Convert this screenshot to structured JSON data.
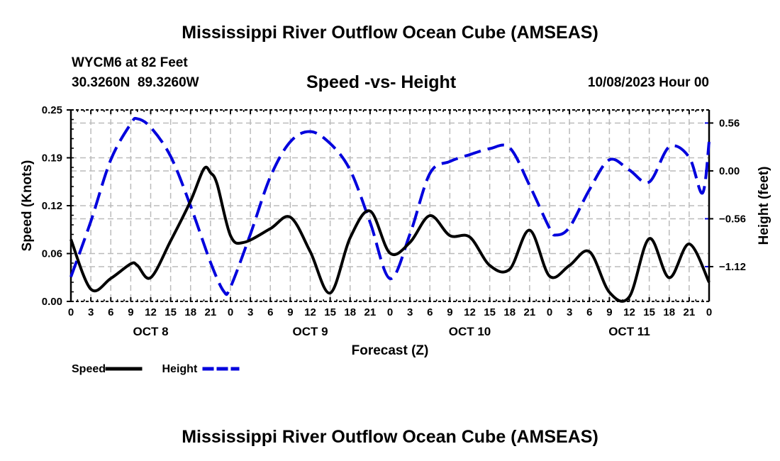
{
  "header": {
    "title": "Mississippi River Outflow Ocean Cube (AMSEAS)",
    "station": "WYCM6 at 82 Feet",
    "coords": "30.3260N  89.3260W",
    "date": "10/08/2023 Hour 00",
    "footer_title": "Mississippi River Outflow Ocean Cube (AMSEAS)"
  },
  "chart_data": {
    "type": "line",
    "title": "Speed -vs- Height",
    "xlabel": "Forecast (Z)",
    "ylabel": "Speed (Knots)",
    "y2label": "Height (feet)",
    "xlim": [
      0,
      96
    ],
    "ylim": [
      0,
      0.25
    ],
    "y2lim": [
      -1.527,
      0.713
    ],
    "grid": true,
    "legend_placement": "bottom-left",
    "x_tick_labels": [
      "0",
      "3",
      "6",
      "9",
      "12",
      "15",
      "18",
      "21",
      "0",
      "3",
      "6",
      "9",
      "12",
      "15",
      "18",
      "21",
      "0",
      "3",
      "6",
      "9",
      "12",
      "15",
      "18",
      "21",
      "0",
      "3",
      "6",
      "9",
      "12",
      "15",
      "18",
      "21",
      "0"
    ],
    "day_labels": [
      {
        "label": "OCT 8",
        "hour": 12
      },
      {
        "label": "OCT 9",
        "hour": 36
      },
      {
        "label": "OCT 10",
        "hour": 60
      },
      {
        "label": "OCT 11",
        "hour": 84
      }
    ],
    "y_ticks": [
      {
        "v": 0,
        "label": "0.00"
      },
      {
        "v": 0.0625,
        "label": "0.06"
      },
      {
        "v": 0.125,
        "label": "0.12"
      },
      {
        "v": 0.1875,
        "label": "0.19"
      },
      {
        "v": 0.25,
        "label": "0.25"
      }
    ],
    "y2_ticks": [
      {
        "v": 0.56,
        "label": "0.56"
      },
      {
        "v": 0,
        "label": "0.00"
      },
      {
        "v": -0.56,
        "label": "−0.56"
      },
      {
        "v": -1.12,
        "label": "−1.12"
      }
    ],
    "series": [
      {
        "name": "Speed",
        "axis": "left",
        "color": "#000000",
        "dash": false,
        "x": [
          0,
          3,
          6,
          9,
          10,
          12,
          15,
          18,
          20,
          21,
          22,
          24,
          26,
          30,
          33,
          36,
          39,
          42,
          45,
          48,
          51,
          54,
          57,
          60,
          63,
          66,
          69,
          72,
          75,
          78,
          81,
          84,
          87,
          90,
          93,
          96
        ],
        "y": [
          0.081,
          0.016,
          0.03,
          0.049,
          0.047,
          0.031,
          0.079,
          0.131,
          0.173,
          0.168,
          0.153,
          0.086,
          0.077,
          0.095,
          0.11,
          0.065,
          0.011,
          0.083,
          0.118,
          0.063,
          0.077,
          0.112,
          0.086,
          0.084,
          0.047,
          0.042,
          0.093,
          0.033,
          0.047,
          0.065,
          0.012,
          0.006,
          0.082,
          0.031,
          0.075,
          0.025
        ]
      },
      {
        "name": "Height",
        "axis": "right",
        "color": "#0000dd",
        "dash": true,
        "x": [
          0,
          3,
          6,
          9,
          10,
          12,
          15,
          18,
          21,
          23,
          24,
          27,
          30,
          33,
          36,
          39,
          42,
          45,
          48,
          51,
          54,
          57,
          60,
          63,
          66,
          69,
          72,
          73,
          75,
          78,
          81,
          84,
          87,
          90,
          93,
          95,
          96
        ],
        "y": [
          -1.24,
          -0.59,
          0.13,
          0.55,
          0.61,
          0.51,
          0.17,
          -0.41,
          -1.07,
          -1.41,
          -1.36,
          -0.74,
          -0.07,
          0.34,
          0.46,
          0.32,
          0.01,
          -0.6,
          -1.26,
          -0.74,
          -0.03,
          0.11,
          0.19,
          0.26,
          0.27,
          -0.17,
          -0.67,
          -0.75,
          -0.66,
          -0.22,
          0.13,
          0.01,
          -0.13,
          0.28,
          0.16,
          -0.26,
          0.34
        ]
      }
    ]
  }
}
